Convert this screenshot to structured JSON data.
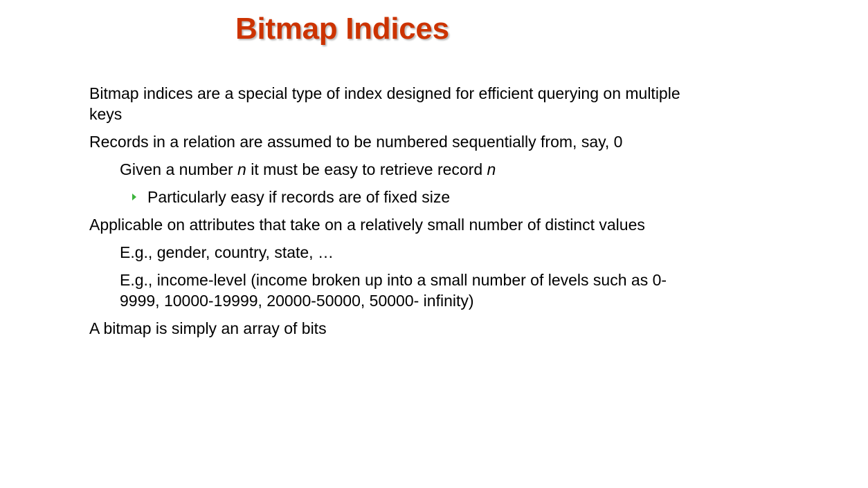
{
  "title": "Bitmap Indices",
  "colors": {
    "title": "#cc3300",
    "text": "#000000",
    "bullet": "#3cb43c"
  },
  "bullets": {
    "b1": "Bitmap indices are a special type of index designed for efficient querying on multiple keys",
    "b2": "Records in a relation are assumed to be numbered sequentially from, say, 0",
    "b2_1": {
      "before": "Given a number ",
      "var1": "n",
      "middle": " it must be easy to retrieve record ",
      "var2": "n"
    },
    "b2_1_1": "Particularly easy if records are of fixed size",
    "b3": "Applicable on attributes that take on a relatively small number of distinct values",
    "b3_1": "E.g., gender, country, state, …",
    "b3_2": "E.g., income-level (income broken up into a small number of  levels such as 0-9999, 10000-19999, 20000-50000, 50000- infinity)",
    "b4": "A bitmap is simply an array of bits"
  }
}
